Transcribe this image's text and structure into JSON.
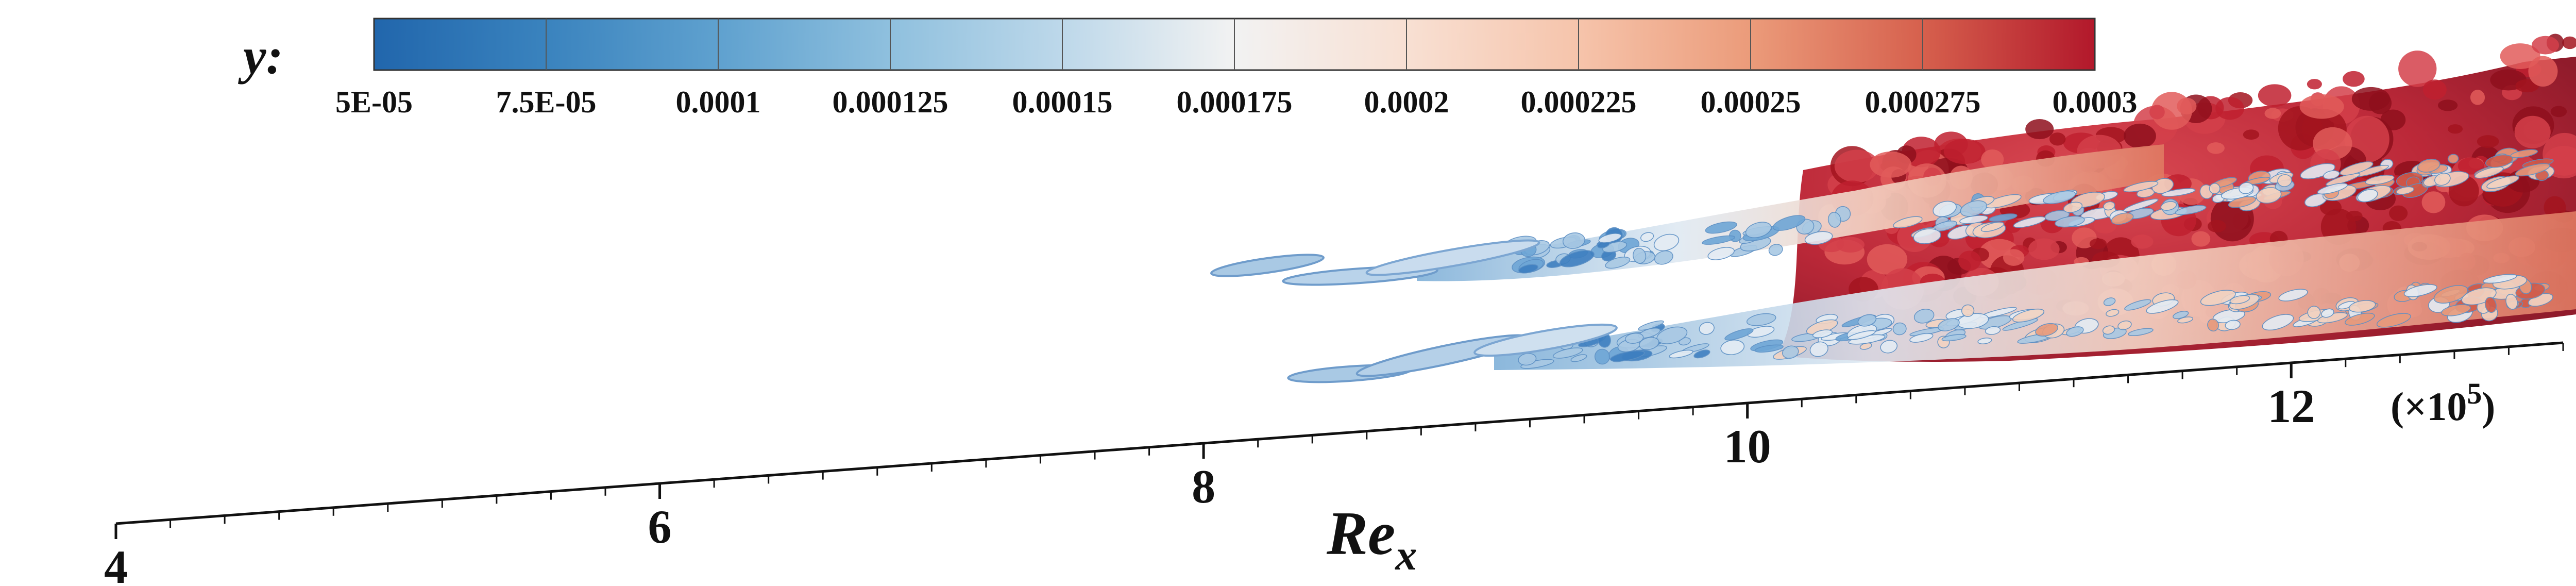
{
  "colorbar": {
    "variable_label": "y:",
    "tick_labels": [
      "5E-05",
      "7.5E-05",
      "0.0001",
      "0.000125",
      "0.00015",
      "0.000175",
      "0.0002",
      "0.000225",
      "0.00025",
      "0.000275",
      "0.0003"
    ],
    "colors": [
      "#2166ac",
      "#3a83be",
      "#5fa1cf",
      "#8fc0de",
      "#bdd8ea",
      "#e3edf4",
      "#f8e5da",
      "#f6c4ab",
      "#eb9b7a",
      "#d6604d",
      "#b2182b"
    ]
  },
  "axis": {
    "title_main": "Re",
    "title_sub": "x",
    "tick_labels": [
      "4",
      "6",
      "8",
      "10",
      "12"
    ],
    "multiplier_prefix": "(×10",
    "multiplier_exp": "5",
    "multiplier_suffix": ")"
  },
  "colors": {
    "low": "#3a78b8",
    "mid": "#e8eef5",
    "high": "#b2182b"
  }
}
